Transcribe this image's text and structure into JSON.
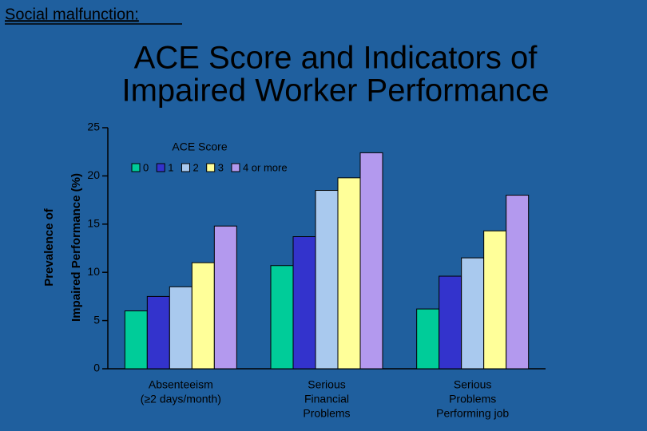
{
  "header": {
    "title": "Social malfunction:"
  },
  "chart_data": {
    "type": "bar",
    "title": [
      "ACE Score and Indicators of",
      "Impaired Worker Performance"
    ],
    "ylabel": [
      "Prevalence of",
      "Impaired Performance (%)"
    ],
    "legend_title": "ACE Score",
    "categories": [
      [
        "Absenteeism",
        "(≥2 days/month)"
      ],
      [
        "Serious",
        "Financial",
        "Problems"
      ],
      [
        "Serious",
        "Problems",
        "Performing job"
      ]
    ],
    "series": [
      {
        "name": "0",
        "color": "#00cc99",
        "values": [
          6,
          10.7,
          6.2
        ]
      },
      {
        "name": "1",
        "color": "#3333cc",
        "values": [
          7.5,
          13.7,
          9.6
        ]
      },
      {
        "name": "2",
        "color": "#a9c9ee",
        "values": [
          8.5,
          18.5,
          11.5
        ]
      },
      {
        "name": "3",
        "color": "#ffff99",
        "values": [
          11,
          19.8,
          14.3
        ]
      },
      {
        "name": "4 or more",
        "color": "#b399ee",
        "values": [
          14.8,
          22.4,
          18
        ]
      }
    ],
    "ylim": [
      0,
      25
    ],
    "yticks": [
      0,
      5,
      10,
      15,
      20,
      25
    ]
  }
}
